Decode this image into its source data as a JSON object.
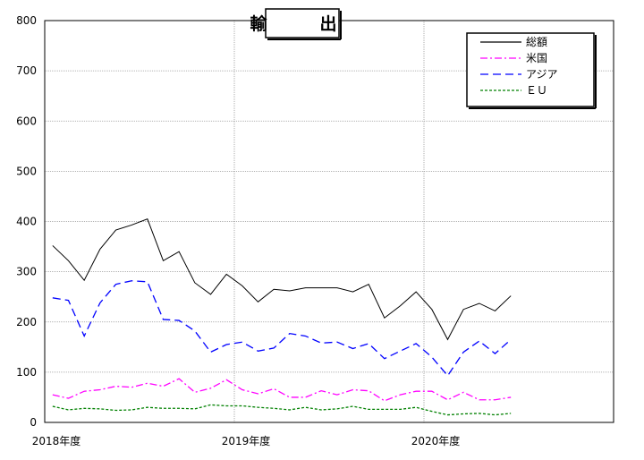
{
  "chart_data": {
    "type": "line",
    "title": "輸　出",
    "ylim": [
      0,
      800
    ],
    "y_ticks": [
      "0",
      "100",
      "200",
      "300",
      "400",
      "500",
      "600",
      "700",
      "800"
    ],
    "x_tick_labels": [
      "2018年度",
      "2019年度",
      "2020年度"
    ],
    "x_tick_positions": [
      0,
      12,
      24
    ],
    "x_range": [
      0,
      36
    ],
    "grid": true,
    "legend_position": "top-right",
    "series": [
      {
        "name": "総額",
        "color": "#000000",
        "dash": "solid",
        "values": [
          352,
          322,
          283,
          345,
          383,
          393,
          405,
          322,
          340,
          278,
          255,
          295,
          272,
          240,
          265,
          262,
          268,
          268,
          268,
          260,
          275,
          208,
          232,
          260,
          225,
          165,
          225,
          237,
          222,
          252
        ]
      },
      {
        "name": "米国",
        "color": "#ff00ff",
        "dash": "dash-dot",
        "values": [
          55,
          48,
          62,
          65,
          72,
          70,
          78,
          72,
          87,
          60,
          68,
          85,
          65,
          57,
          67,
          50,
          50,
          63,
          55,
          65,
          63,
          43,
          55,
          62,
          62,
          45,
          60,
          45,
          45,
          50
        ]
      },
      {
        "name": "アジア",
        "color": "#0000ff",
        "dash": "long-dash",
        "values": [
          248,
          243,
          172,
          238,
          275,
          282,
          280,
          205,
          203,
          182,
          140,
          155,
          160,
          142,
          148,
          177,
          172,
          158,
          160,
          147,
          157,
          127,
          142,
          157,
          130,
          93,
          140,
          162,
          137,
          165
        ]
      },
      {
        "name": "ＥＵ",
        "color": "#008000",
        "dash": "short-dash",
        "values": [
          32,
          25,
          28,
          27,
          24,
          25,
          30,
          28,
          28,
          27,
          35,
          33,
          33,
          30,
          28,
          25,
          30,
          25,
          27,
          32,
          26,
          26,
          26,
          30,
          22,
          15,
          17,
          18,
          15,
          18
        ]
      }
    ]
  }
}
